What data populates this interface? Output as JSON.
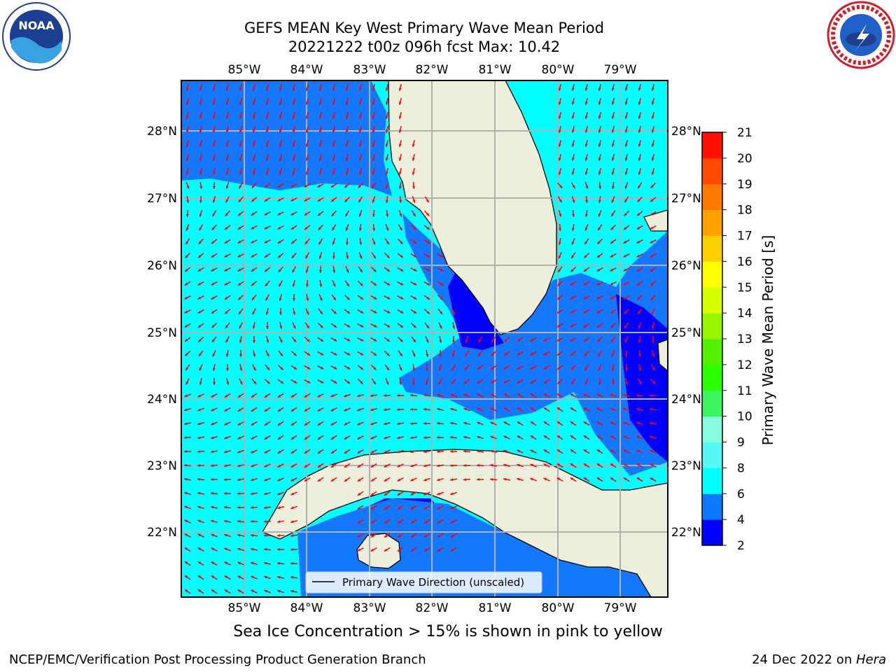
{
  "title": {
    "line1": "GEFS MEAN Key West Primary Wave Mean Period",
    "line2": "20221222 t00z 096h fcst   Max: 10.42"
  },
  "logos": {
    "left": "noaa-logo",
    "right": "nws-logo"
  },
  "axes": {
    "lon_labels": [
      "85°W",
      "84°W",
      "83°W",
      "82°W",
      "81°W",
      "80°W",
      "79°W"
    ],
    "lat_labels": [
      "28°N",
      "27°N",
      "26°N",
      "25°N",
      "24°N",
      "23°N",
      "22°N"
    ]
  },
  "legend": {
    "label": "Primary Wave Direction (unscaled)"
  },
  "colorbar": {
    "label": "Primary Wave Mean Period [s]",
    "ticks": [
      "2",
      "4",
      "6",
      "8",
      "9",
      "10",
      "11",
      "12",
      "13",
      "14",
      "15",
      "16",
      "17",
      "18",
      "19",
      "20",
      "21"
    ],
    "colors": [
      "#0000ff",
      "#0a78ff",
      "#00ffff",
      "#55f7f7",
      "#88fde0",
      "#3df55f",
      "#2cff00",
      "#55f000",
      "#98f500",
      "#d6ff00",
      "#ffff00",
      "#ffd000",
      "#ffa000",
      "#ff7a00",
      "#ff4a00",
      "#ff1000"
    ]
  },
  "map_colors": {
    "land": "#eeeedd",
    "period_2_4": "#0000ff",
    "period_4_6": "#1478ff",
    "period_6_8": "#00ffff",
    "arrow": "#ff0000"
  },
  "subcaption": "Sea Ice Concentration > 15% is shown in pink to yellow",
  "footer": {
    "left": "NCEP/EMC/Verification Post Processing Product Generation Branch",
    "right_date": "24 Dec 2022 on ",
    "right_host": "Hera"
  }
}
